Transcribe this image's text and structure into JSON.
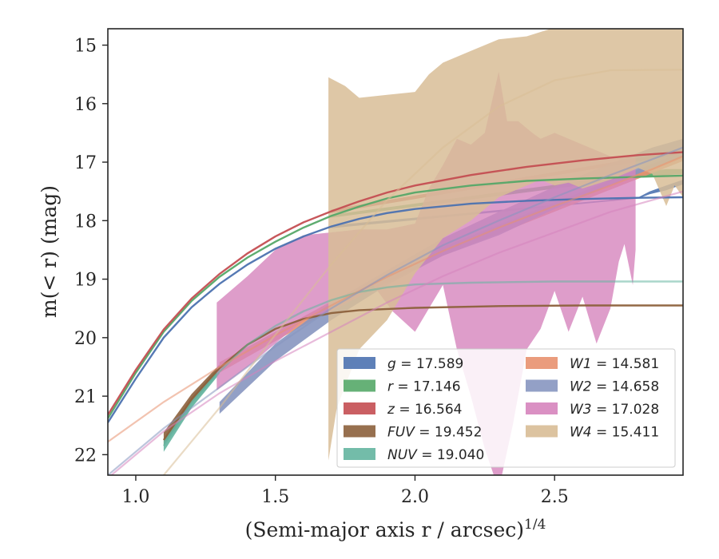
{
  "chart_data": {
    "type": "line",
    "xlabel": "(Semi-major axis r / arcsec)^1/4",
    "ylabel": "m(< r) (mag)",
    "xlim": [
      0.9,
      2.96
    ],
    "ylim": [
      22.35,
      14.72
    ],
    "y_inverted": true,
    "grid": false,
    "legend": "lower-right, two columns",
    "x_ticks": [
      {
        "value": 1.0,
        "label": "1.0"
      },
      {
        "value": 1.5,
        "label": "1.5"
      },
      {
        "value": 2.0,
        "label": "2.0"
      },
      {
        "value": 2.5,
        "label": "2.5"
      }
    ],
    "y_ticks": [
      {
        "value": 15,
        "label": "15"
      },
      {
        "value": 16,
        "label": "16"
      },
      {
        "value": 17,
        "label": "17"
      },
      {
        "value": 18,
        "label": "18"
      },
      {
        "value": 19,
        "label": "19"
      },
      {
        "value": 20,
        "label": "20"
      },
      {
        "value": 21,
        "label": "21"
      },
      {
        "value": 22,
        "label": "22"
      }
    ],
    "series": [
      {
        "name": "g = 17.589",
        "band": "g",
        "total": "17.589",
        "color": "#4c72b0",
        "curve": [
          [
            0.9,
            21.45
          ],
          [
            1.0,
            20.7
          ],
          [
            1.1,
            20.0
          ],
          [
            1.2,
            19.48
          ],
          [
            1.3,
            19.08
          ],
          [
            1.4,
            18.75
          ],
          [
            1.5,
            18.48
          ],
          [
            1.6,
            18.27
          ],
          [
            1.7,
            18.1
          ],
          [
            1.8,
            17.97
          ],
          [
            1.9,
            17.87
          ],
          [
            2.0,
            17.8
          ],
          [
            2.2,
            17.71
          ],
          [
            2.4,
            17.66
          ],
          [
            2.6,
            17.63
          ],
          [
            2.8,
            17.61
          ],
          [
            2.96,
            17.6
          ]
        ],
        "band_lo": [
          [
            1.7,
            18.13
          ],
          [
            2.8,
            17.62
          ],
          [
            2.84,
            17.55
          ],
          [
            2.9,
            17.48
          ],
          [
            2.96,
            17.38
          ]
        ],
        "band_hi": [
          [
            1.7,
            18.08
          ],
          [
            2.8,
            17.6
          ],
          [
            2.84,
            17.5
          ],
          [
            2.9,
            17.4
          ],
          [
            2.96,
            17.3
          ]
        ]
      },
      {
        "name": "r = 17.146",
        "band": "r",
        "total": "17.146",
        "color": "#55a868",
        "curve": [
          [
            0.9,
            21.38
          ],
          [
            1.0,
            20.6
          ],
          [
            1.1,
            19.9
          ],
          [
            1.2,
            19.37
          ],
          [
            1.3,
            18.96
          ],
          [
            1.4,
            18.63
          ],
          [
            1.5,
            18.36
          ],
          [
            1.6,
            18.12
          ],
          [
            1.7,
            17.92
          ],
          [
            1.8,
            17.76
          ],
          [
            1.9,
            17.62
          ],
          [
            2.0,
            17.52
          ],
          [
            2.2,
            17.4
          ],
          [
            2.4,
            17.32
          ],
          [
            2.6,
            17.28
          ],
          [
            2.8,
            17.25
          ],
          [
            2.96,
            17.23
          ]
        ],
        "band_lo": [
          [
            1.7,
            17.95
          ],
          [
            2.7,
            17.33
          ],
          [
            2.8,
            17.27
          ],
          [
            2.9,
            17.22
          ],
          [
            2.96,
            17.2
          ]
        ],
        "band_hi": [
          [
            1.7,
            17.9
          ],
          [
            2.7,
            17.26
          ],
          [
            2.8,
            17.18
          ],
          [
            2.9,
            17.12
          ],
          [
            2.96,
            17.12
          ]
        ]
      },
      {
        "name": "z = 16.564",
        "band": "z",
        "total": "16.564",
        "color": "#c44e52",
        "curve": [
          [
            0.9,
            21.32
          ],
          [
            1.0,
            20.55
          ],
          [
            1.1,
            19.86
          ],
          [
            1.2,
            19.33
          ],
          [
            1.3,
            18.91
          ],
          [
            1.4,
            18.56
          ],
          [
            1.5,
            18.27
          ],
          [
            1.6,
            18.03
          ],
          [
            1.7,
            17.84
          ],
          [
            1.8,
            17.67
          ],
          [
            1.9,
            17.52
          ],
          [
            2.0,
            17.4
          ],
          [
            2.2,
            17.22
          ],
          [
            2.4,
            17.08
          ],
          [
            2.6,
            16.97
          ],
          [
            2.8,
            16.88
          ],
          [
            2.96,
            16.83
          ]
        ],
        "band_lo": [
          [
            1.7,
            17.87
          ],
          [
            2.96,
            16.86
          ]
        ],
        "band_hi": [
          [
            1.7,
            17.81
          ],
          [
            2.96,
            16.8
          ]
        ]
      },
      {
        "name": "FUV = 19.452",
        "band": "FUV",
        "total": "19.452",
        "color": "#8c613c",
        "curve": [
          [
            1.1,
            21.75
          ],
          [
            1.2,
            21.05
          ],
          [
            1.3,
            20.52
          ],
          [
            1.4,
            20.12
          ],
          [
            1.5,
            19.85
          ],
          [
            1.6,
            19.68
          ],
          [
            1.7,
            19.58
          ],
          [
            1.8,
            19.53
          ],
          [
            2.0,
            19.49
          ],
          [
            2.3,
            19.46
          ],
          [
            2.6,
            19.45
          ],
          [
            2.96,
            19.45
          ]
        ],
        "band_lo": [
          [
            1.1,
            21.85
          ],
          [
            1.2,
            21.12
          ],
          [
            1.3,
            20.58
          ]
        ],
        "band_hi": [
          [
            1.1,
            21.62
          ],
          [
            1.2,
            20.96
          ],
          [
            1.3,
            20.46
          ]
        ]
      },
      {
        "name": "NUV = 19.040",
        "band": "NUV",
        "total": "19.040",
        "color": "#64b5a0",
        "curve": [
          [
            1.1,
            21.85
          ],
          [
            1.2,
            21.15
          ],
          [
            1.3,
            20.58
          ],
          [
            1.4,
            20.12
          ],
          [
            1.5,
            19.8
          ],
          [
            1.6,
            19.55
          ],
          [
            1.7,
            19.36
          ],
          [
            1.8,
            19.22
          ],
          [
            1.9,
            19.14
          ],
          [
            2.0,
            19.09
          ],
          [
            2.2,
            19.06
          ],
          [
            2.5,
            19.04
          ],
          [
            2.96,
            19.04
          ]
        ],
        "band_lo": [
          [
            1.1,
            21.95
          ],
          [
            1.2,
            21.2
          ],
          [
            1.3,
            20.62
          ]
        ],
        "band_hi": [
          [
            1.1,
            21.75
          ],
          [
            1.2,
            21.08
          ],
          [
            1.3,
            20.52
          ]
        ]
      },
      {
        "name": "W1 = 14.581",
        "band": "W1",
        "total": "14.581",
        "color": "#e8916f",
        "curve": [
          [
            0.9,
            21.78
          ],
          [
            1.1,
            21.1
          ],
          [
            1.3,
            20.5
          ],
          [
            1.5,
            19.96
          ],
          [
            1.7,
            19.45
          ],
          [
            1.9,
            18.96
          ],
          [
            2.1,
            18.52
          ],
          [
            2.3,
            18.12
          ],
          [
            2.5,
            17.75
          ],
          [
            2.7,
            17.4
          ],
          [
            2.85,
            17.12
          ],
          [
            2.96,
            16.9
          ]
        ],
        "band_lo": [
          [
            1.3,
            20.6
          ],
          [
            1.7,
            19.52
          ],
          [
            2.1,
            18.6
          ],
          [
            2.96,
            16.98
          ]
        ],
        "band_hi": [
          [
            1.3,
            20.42
          ],
          [
            1.7,
            19.38
          ],
          [
            2.1,
            18.45
          ],
          [
            2.96,
            16.82
          ]
        ]
      },
      {
        "name": "W2 = 14.658",
        "band": "W2",
        "total": "14.658",
        "color": "#8796c0",
        "curve": [
          [
            0.9,
            22.35
          ],
          [
            1.1,
            21.55
          ],
          [
            1.3,
            20.85
          ],
          [
            1.5,
            20.15
          ],
          [
            1.7,
            19.5
          ],
          [
            1.9,
            18.93
          ],
          [
            2.1,
            18.42
          ],
          [
            2.3,
            18.0
          ],
          [
            2.5,
            17.6
          ],
          [
            2.7,
            17.22
          ],
          [
            2.85,
            16.95
          ],
          [
            2.96,
            16.75
          ]
        ],
        "band_lo": [
          [
            1.3,
            21.3
          ],
          [
            1.5,
            20.4
          ],
          [
            1.7,
            19.7
          ],
          [
            1.9,
            19.1
          ],
          [
            2.1,
            18.6
          ],
          [
            2.3,
            18.25
          ],
          [
            2.5,
            17.8
          ],
          [
            2.7,
            17.4
          ],
          [
            2.85,
            17.1
          ],
          [
            2.96,
            16.9
          ]
        ],
        "band_hi": [
          [
            1.3,
            21.1
          ],
          [
            1.5,
            20.1
          ],
          [
            1.7,
            19.4
          ],
          [
            1.9,
            18.85
          ],
          [
            2.1,
            18.3
          ],
          [
            2.3,
            17.85
          ],
          [
            2.5,
            17.42
          ],
          [
            2.7,
            17.02
          ],
          [
            2.85,
            16.75
          ],
          [
            2.96,
            16.6
          ]
        ]
      },
      {
        "name": "W3 = 17.028",
        "band": "W3",
        "total": "17.028",
        "color": "#d684bd",
        "curve": [
          [
            0.9,
            22.4
          ],
          [
            1.1,
            21.6
          ],
          [
            1.3,
            20.95
          ],
          [
            1.5,
            20.4
          ],
          [
            1.7,
            19.9
          ],
          [
            1.9,
            19.4
          ],
          [
            2.1,
            18.95
          ],
          [
            2.3,
            18.55
          ],
          [
            2.5,
            18.2
          ],
          [
            2.7,
            17.85
          ],
          [
            2.96,
            17.5
          ]
        ],
        "band_lo": [
          [
            1.29,
            20.9
          ],
          [
            1.4,
            20.5
          ],
          [
            1.5,
            20.1
          ],
          [
            1.6,
            19.7
          ],
          [
            1.7,
            19.55
          ],
          [
            1.8,
            19.3
          ],
          [
            1.85,
            19.1
          ],
          [
            1.92,
            19.55
          ],
          [
            2.0,
            19.9
          ],
          [
            2.05,
            19.5
          ],
          [
            2.1,
            19.1
          ],
          [
            2.15,
            20.2
          ],
          [
            2.2,
            21.0
          ],
          [
            2.25,
            21.9
          ],
          [
            2.3,
            22.6
          ],
          [
            2.35,
            21.5
          ],
          [
            2.4,
            20.2
          ],
          [
            2.45,
            19.85
          ],
          [
            2.5,
            19.2
          ],
          [
            2.55,
            19.9
          ],
          [
            2.6,
            19.3
          ],
          [
            2.65,
            20.1
          ],
          [
            2.7,
            19.5
          ],
          [
            2.73,
            18.7
          ],
          [
            2.75,
            18.4
          ],
          [
            2.78,
            19.1
          ],
          [
            2.79,
            18.5
          ]
        ],
        "band_hi": [
          [
            1.29,
            19.4
          ],
          [
            1.4,
            18.95
          ],
          [
            1.5,
            18.5
          ],
          [
            1.6,
            18.25
          ],
          [
            1.7,
            18.2
          ],
          [
            1.8,
            18.15
          ],
          [
            1.9,
            18.15
          ],
          [
            2.0,
            18.05
          ],
          [
            2.05,
            17.45
          ],
          [
            2.1,
            17.05
          ],
          [
            2.15,
            16.6
          ],
          [
            2.2,
            16.7
          ],
          [
            2.25,
            16.5
          ],
          [
            2.3,
            15.45
          ],
          [
            2.33,
            16.3
          ],
          [
            2.37,
            16.3
          ],
          [
            2.42,
            16.5
          ],
          [
            2.45,
            16.6
          ],
          [
            2.5,
            16.5
          ],
          [
            2.55,
            16.6
          ],
          [
            2.6,
            16.7
          ],
          [
            2.65,
            16.8
          ],
          [
            2.7,
            16.9
          ],
          [
            2.75,
            16.9
          ],
          [
            2.79,
            16.9
          ]
        ]
      },
      {
        "name": "W4 = 15.411",
        "band": "W4",
        "total": "15.411",
        "color": "#d8bd96",
        "curve": [
          [
            1.1,
            22.35
          ],
          [
            1.3,
            21.2
          ],
          [
            1.5,
            19.95
          ],
          [
            1.7,
            18.75
          ],
          [
            1.9,
            17.65
          ],
          [
            2.1,
            16.75
          ],
          [
            2.3,
            16.05
          ],
          [
            2.5,
            15.6
          ],
          [
            2.7,
            15.43
          ],
          [
            2.96,
            15.42
          ]
        ],
        "band_lo": [
          [
            1.69,
            22.1
          ],
          [
            1.72,
            21.2
          ],
          [
            1.8,
            20.2
          ],
          [
            1.9,
            19.7
          ],
          [
            2.0,
            18.9
          ],
          [
            2.1,
            18.3
          ],
          [
            2.2,
            18.0
          ],
          [
            2.3,
            17.6
          ],
          [
            2.4,
            17.4
          ],
          [
            2.45,
            17.3
          ],
          [
            2.5,
            17.4
          ],
          [
            2.55,
            17.35
          ],
          [
            2.6,
            17.45
          ],
          [
            2.7,
            17.3
          ],
          [
            2.8,
            17.1
          ],
          [
            2.85,
            17.2
          ],
          [
            2.9,
            17.75
          ],
          [
            2.93,
            17.4
          ],
          [
            2.96,
            17.6
          ]
        ],
        "band_hi": [
          [
            1.69,
            15.55
          ],
          [
            1.75,
            15.7
          ],
          [
            1.8,
            15.9
          ],
          [
            1.9,
            15.85
          ],
          [
            2.0,
            15.8
          ],
          [
            2.05,
            15.5
          ],
          [
            2.1,
            15.3
          ],
          [
            2.2,
            15.1
          ],
          [
            2.3,
            14.9
          ],
          [
            2.4,
            14.85
          ],
          [
            2.5,
            14.7
          ],
          [
            2.96,
            14.7
          ]
        ]
      }
    ]
  }
}
